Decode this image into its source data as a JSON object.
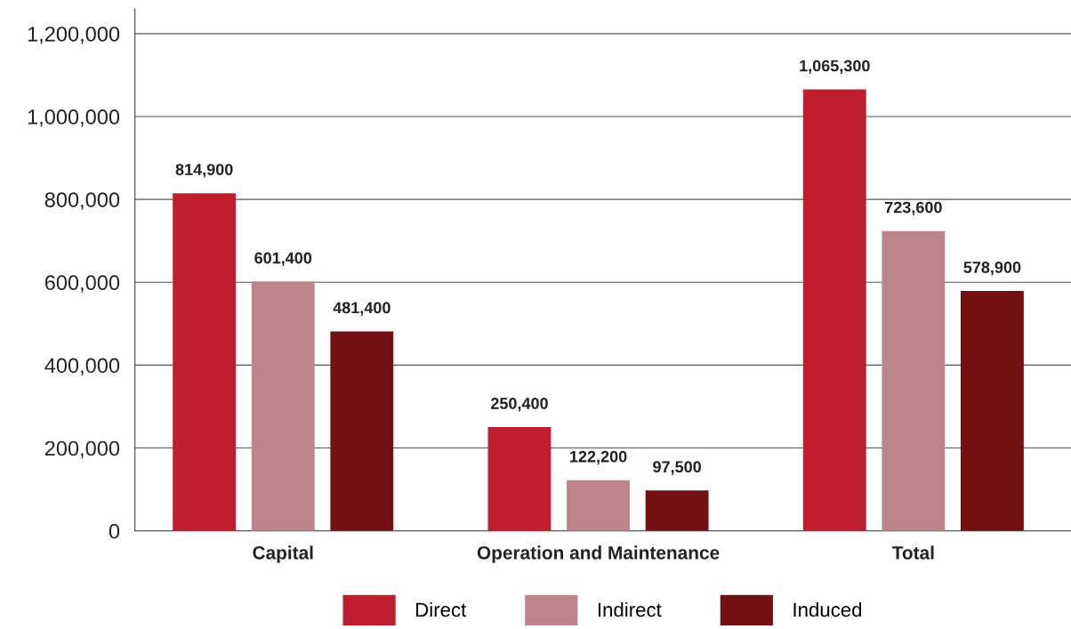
{
  "chart_data": {
    "type": "bar",
    "categories": [
      "Capital",
      "Operation and Maintenance",
      "Total"
    ],
    "series": [
      {
        "name": "Direct",
        "color": "#be1e2d",
        "values": [
          814900,
          250400,
          1065300
        ],
        "value_labels": [
          "814,900",
          "250,400",
          "1,065,300"
        ]
      },
      {
        "name": "Indirect",
        "color": "#bc8589",
        "values": [
          601400,
          122200,
          723600
        ],
        "value_labels": [
          "601,400",
          "122,200",
          "723,600"
        ]
      },
      {
        "name": "Induced",
        "color": "#731014",
        "values": [
          481400,
          97500,
          578900
        ],
        "value_labels": [
          "481,400",
          "97,500",
          "578,900"
        ]
      }
    ],
    "ylim": [
      0,
      1260000
    ],
    "yticks": [
      {
        "value": 0,
        "label": "0"
      },
      {
        "value": 200000,
        "label": "200,000"
      },
      {
        "value": 400000,
        "label": "400,000"
      },
      {
        "value": 600000,
        "label": "600,000"
      },
      {
        "value": 800000,
        "label": "800,000"
      },
      {
        "value": 1000000,
        "label": "1,000,000"
      },
      {
        "value": 1200000,
        "label": "1,200,000"
      }
    ],
    "grid": "y",
    "legend": "bottom"
  }
}
